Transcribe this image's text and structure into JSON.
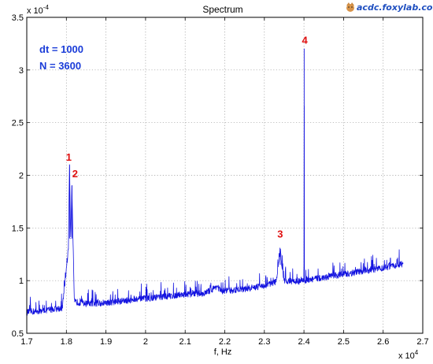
{
  "chart_data": {
    "type": "line",
    "title": "Spectrum",
    "xlabel": "f, Hz",
    "ylabel": "",
    "x_multiplier": "x 10",
    "x_exponent": "4",
    "y_multiplier": "x 10",
    "y_exponent": "-4",
    "xlim": [
      1.7,
      2.7
    ],
    "ylim": [
      0.5,
      3.5
    ],
    "x_ticks": [
      "1.7",
      "1.8",
      "1.9",
      "2",
      "2.1",
      "2.2",
      "2.3",
      "2.4",
      "2.5",
      "2.6",
      "2.7"
    ],
    "y_ticks": [
      "0.5",
      "1",
      "1.5",
      "2",
      "2.5",
      "3",
      "3.5"
    ],
    "grid": true,
    "series": [
      {
        "color": "#1414e0",
        "x": [
          1.7,
          1.75,
          1.79,
          1.805,
          1.808,
          1.811,
          1.814,
          1.82,
          1.85,
          1.9,
          1.95,
          2.0,
          2.05,
          2.1,
          2.15,
          2.17,
          2.18,
          2.19,
          2.2,
          2.25,
          2.3,
          2.33,
          2.335,
          2.34,
          2.345,
          2.35,
          2.39,
          2.4,
          2.4005,
          2.401,
          2.45,
          2.5,
          2.55,
          2.6,
          2.65
        ],
        "y": [
          0.7,
          0.72,
          0.74,
          1.3,
          2.1,
          1.4,
          1.9,
          0.8,
          0.78,
          0.79,
          0.81,
          0.83,
          0.85,
          0.87,
          0.88,
          0.92,
          0.95,
          0.9,
          0.9,
          0.92,
          0.95,
          0.99,
          1.15,
          1.3,
          1.12,
          1.0,
          0.99,
          1.0,
          3.2,
          1.0,
          1.03,
          1.06,
          1.09,
          1.12,
          1.16
        ]
      }
    ],
    "annotations": [
      {
        "label": "1",
        "x": 1.806,
        "y": 2.14
      },
      {
        "label": "2",
        "x": 1.822,
        "y": 1.98
      },
      {
        "label": "3",
        "x": 2.34,
        "y": 1.41
      },
      {
        "label": "4",
        "x": 2.402,
        "y": 3.25
      }
    ],
    "info_lines": [
      "dt = 1000",
      "N = 3600"
    ]
  },
  "watermark": {
    "text": "acdc.foxylab.com",
    "icon": "fox-icon"
  }
}
